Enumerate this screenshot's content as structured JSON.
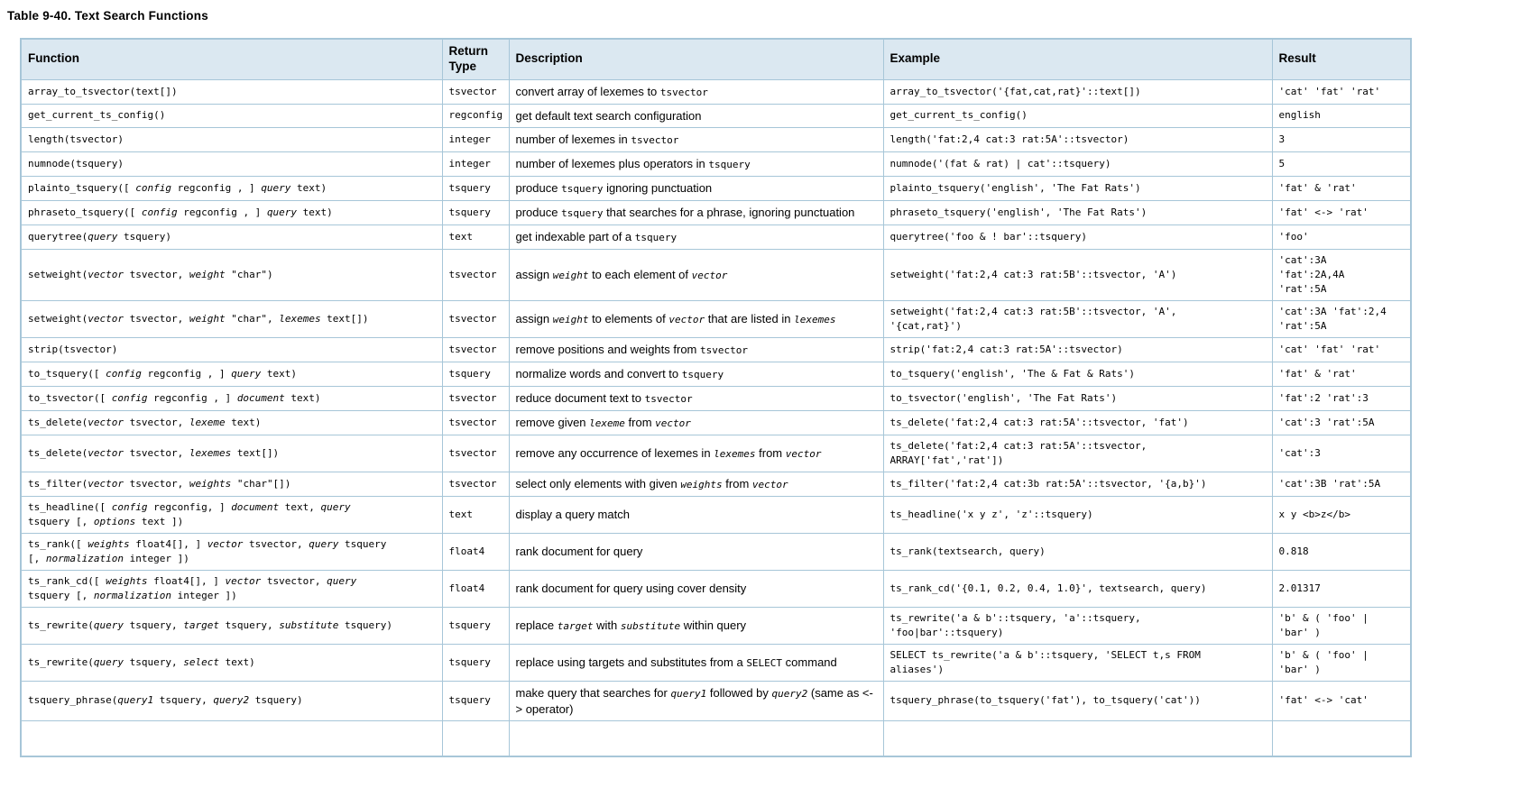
{
  "page_title": "Table 9-40. Text Search Functions",
  "colors": {
    "header_bg": "#dbe8f1",
    "border": "#a7c6d8",
    "text": "#000000"
  },
  "table": {
    "columns": [
      "Function",
      "Return Type",
      "Description",
      "Example",
      "Result"
    ],
    "rows": [
      {
        "func": [
          [
            "c",
            "array_to_tsvector(text[])"
          ]
        ],
        "ret": "tsvector",
        "desc": [
          [
            "t",
            "convert array of lexemes to "
          ],
          [
            "c",
            "tsvector"
          ]
        ],
        "ex": "array_to_tsvector('{fat,cat,rat}'::text[])",
        "res": "'cat' 'fat' 'rat'"
      },
      {
        "func": [
          [
            "c",
            "get_current_ts_config()"
          ]
        ],
        "ret": "regconfig",
        "desc": [
          [
            "t",
            "get default text search configuration"
          ]
        ],
        "ex": "get_current_ts_config()",
        "res": "english"
      },
      {
        "func": [
          [
            "c",
            "length(tsvector)"
          ]
        ],
        "ret": "integer",
        "desc": [
          [
            "t",
            "number of lexemes in "
          ],
          [
            "c",
            "tsvector"
          ]
        ],
        "ex": "length('fat:2,4 cat:3 rat:5A'::tsvector)",
        "res": "3"
      },
      {
        "func": [
          [
            "c",
            "numnode(tsquery)"
          ]
        ],
        "ret": "integer",
        "desc": [
          [
            "t",
            "number of lexemes plus operators in "
          ],
          [
            "c",
            "tsquery"
          ]
        ],
        "ex": "numnode('(fat & rat) | cat'::tsquery)",
        "res": "5"
      },
      {
        "func": [
          [
            "c",
            "plainto_tsquery([ "
          ],
          [
            "i",
            "config"
          ],
          [
            "c",
            " regconfig , ] "
          ],
          [
            "i",
            "query"
          ],
          [
            "c",
            " text)"
          ]
        ],
        "ret": "tsquery",
        "desc": [
          [
            "t",
            "produce "
          ],
          [
            "c",
            "tsquery"
          ],
          [
            "t",
            " ignoring punctuation"
          ]
        ],
        "ex": "plainto_tsquery('english', 'The Fat Rats')",
        "res": "'fat' & 'rat'"
      },
      {
        "func": [
          [
            "c",
            "phraseto_tsquery([ "
          ],
          [
            "i",
            "config"
          ],
          [
            "c",
            " regconfig , ] "
          ],
          [
            "i",
            "query"
          ],
          [
            "c",
            " text)"
          ]
        ],
        "ret": "tsquery",
        "desc": [
          [
            "t",
            "produce "
          ],
          [
            "c",
            "tsquery"
          ],
          [
            "t",
            " that searches for a phrase, ignoring punctuation"
          ]
        ],
        "ex": "phraseto_tsquery('english', 'The Fat Rats')",
        "res": "'fat' <-> 'rat'"
      },
      {
        "func": [
          [
            "c",
            "querytree("
          ],
          [
            "i",
            "query"
          ],
          [
            "c",
            " tsquery)"
          ]
        ],
        "ret": "text",
        "desc": [
          [
            "t",
            "get indexable part of a "
          ],
          [
            "c",
            "tsquery"
          ]
        ],
        "ex": "querytree('foo & ! bar'::tsquery)",
        "res": "'foo'"
      },
      {
        "func": [
          [
            "c",
            "setweight("
          ],
          [
            "i",
            "vector"
          ],
          [
            "c",
            " tsvector, "
          ],
          [
            "i",
            "weight"
          ],
          [
            "c",
            " \"char\")"
          ]
        ],
        "ret": "tsvector",
        "desc": [
          [
            "t",
            "assign "
          ],
          [
            "i",
            "weight"
          ],
          [
            "t",
            " to each element of "
          ],
          [
            "i",
            "vector"
          ]
        ],
        "ex": "setweight('fat:2,4 cat:3 rat:5B'::tsvector, 'A')",
        "res": "'cat':3A\n'fat':2A,4A\n'rat':5A"
      },
      {
        "func": [
          [
            "c",
            "setweight("
          ],
          [
            "i",
            "vector"
          ],
          [
            "c",
            " tsvector, "
          ],
          [
            "i",
            "weight"
          ],
          [
            "c",
            " \"char\", "
          ],
          [
            "i",
            "lexemes"
          ],
          [
            "c",
            " text[])"
          ]
        ],
        "ret": "tsvector",
        "desc": [
          [
            "t",
            "assign "
          ],
          [
            "i",
            "weight"
          ],
          [
            "t",
            " to elements of "
          ],
          [
            "i",
            "vector"
          ],
          [
            "t",
            " that are listed in "
          ],
          [
            "i",
            "lexemes"
          ]
        ],
        "ex": "setweight('fat:2,4 cat:3 rat:5B'::tsvector, 'A',\n'{cat,rat}')",
        "res": "'cat':3A 'fat':2,4\n'rat':5A"
      },
      {
        "func": [
          [
            "c",
            "strip(tsvector)"
          ]
        ],
        "ret": "tsvector",
        "desc": [
          [
            "t",
            "remove positions and weights from "
          ],
          [
            "c",
            "tsvector"
          ]
        ],
        "ex": "strip('fat:2,4 cat:3 rat:5A'::tsvector)",
        "res": "'cat' 'fat' 'rat'"
      },
      {
        "func": [
          [
            "c",
            "to_tsquery([ "
          ],
          [
            "i",
            "config"
          ],
          [
            "c",
            " regconfig , ] "
          ],
          [
            "i",
            "query"
          ],
          [
            "c",
            " text)"
          ]
        ],
        "ret": "tsquery",
        "desc": [
          [
            "t",
            "normalize words and convert to "
          ],
          [
            "c",
            "tsquery"
          ]
        ],
        "ex": "to_tsquery('english', 'The & Fat & Rats')",
        "res": "'fat' & 'rat'"
      },
      {
        "func": [
          [
            "c",
            "to_tsvector([ "
          ],
          [
            "i",
            "config"
          ],
          [
            "c",
            " regconfig , ] "
          ],
          [
            "i",
            "document"
          ],
          [
            "c",
            " text)"
          ]
        ],
        "ret": "tsvector",
        "desc": [
          [
            "t",
            "reduce document text to "
          ],
          [
            "c",
            "tsvector"
          ]
        ],
        "ex": "to_tsvector('english', 'The Fat Rats')",
        "res": "'fat':2 'rat':3"
      },
      {
        "func": [
          [
            "c",
            "ts_delete("
          ],
          [
            "i",
            "vector"
          ],
          [
            "c",
            " tsvector, "
          ],
          [
            "i",
            "lexeme"
          ],
          [
            "c",
            " text)"
          ]
        ],
        "ret": "tsvector",
        "desc": [
          [
            "t",
            "remove given "
          ],
          [
            "i",
            "lexeme"
          ],
          [
            "t",
            " from "
          ],
          [
            "i",
            "vector"
          ]
        ],
        "ex": "ts_delete('fat:2,4 cat:3 rat:5A'::tsvector, 'fat')",
        "res": "'cat':3 'rat':5A"
      },
      {
        "func": [
          [
            "c",
            "ts_delete("
          ],
          [
            "i",
            "vector"
          ],
          [
            "c",
            " tsvector, "
          ],
          [
            "i",
            "lexemes"
          ],
          [
            "c",
            " text[])"
          ]
        ],
        "ret": "tsvector",
        "desc": [
          [
            "t",
            "remove any occurrence of lexemes in "
          ],
          [
            "i",
            "lexemes"
          ],
          [
            "t",
            " from "
          ],
          [
            "i",
            "vector"
          ]
        ],
        "ex": "ts_delete('fat:2,4 cat:3 rat:5A'::tsvector,\nARRAY['fat','rat'])",
        "res": "'cat':3"
      },
      {
        "func": [
          [
            "c",
            "ts_filter("
          ],
          [
            "i",
            "vector"
          ],
          [
            "c",
            " tsvector, "
          ],
          [
            "i",
            "weights"
          ],
          [
            "c",
            " \"char\"[])"
          ]
        ],
        "ret": "tsvector",
        "desc": [
          [
            "t",
            "select only elements with given "
          ],
          [
            "i",
            "weights"
          ],
          [
            "t",
            " from "
          ],
          [
            "i",
            "vector"
          ]
        ],
        "ex": "ts_filter('fat:2,4 cat:3b rat:5A'::tsvector, '{a,b}')",
        "res": "'cat':3B 'rat':5A"
      },
      {
        "func": [
          [
            "c",
            "ts_headline([ "
          ],
          [
            "i",
            "config"
          ],
          [
            "c",
            " regconfig, ] "
          ],
          [
            "i",
            "document"
          ],
          [
            "c",
            " text, "
          ],
          [
            "i",
            "query"
          ],
          [
            "br",
            ""
          ],
          [
            "c",
            "tsquery [, "
          ],
          [
            "i",
            "options"
          ],
          [
            "c",
            " text ])"
          ]
        ],
        "ret": "text",
        "desc": [
          [
            "t",
            "display a query match"
          ]
        ],
        "ex": "ts_headline('x y z', 'z'::tsquery)",
        "res": "x y <b>z</b>"
      },
      {
        "func": [
          [
            "c",
            "ts_rank([ "
          ],
          [
            "i",
            "weights"
          ],
          [
            "c",
            " float4[], ] "
          ],
          [
            "i",
            "vector"
          ],
          [
            "c",
            " tsvector, "
          ],
          [
            "i",
            "query"
          ],
          [
            "c",
            " tsquery"
          ],
          [
            "br",
            ""
          ],
          [
            "c",
            "[, "
          ],
          [
            "i",
            "normalization"
          ],
          [
            "c",
            " integer ])"
          ]
        ],
        "ret": "float4",
        "desc": [
          [
            "t",
            "rank document for query"
          ]
        ],
        "ex": "ts_rank(textsearch, query)",
        "res": "0.818"
      },
      {
        "func": [
          [
            "c",
            "ts_rank_cd([ "
          ],
          [
            "i",
            "weights"
          ],
          [
            "c",
            " float4[], ] "
          ],
          [
            "i",
            "vector"
          ],
          [
            "c",
            " tsvector, "
          ],
          [
            "i",
            "query"
          ],
          [
            "br",
            ""
          ],
          [
            "c",
            "tsquery [, "
          ],
          [
            "i",
            "normalization"
          ],
          [
            "c",
            " integer ])"
          ]
        ],
        "ret": "float4",
        "desc": [
          [
            "t",
            "rank document for query using cover density"
          ]
        ],
        "ex": "ts_rank_cd('{0.1, 0.2, 0.4, 1.0}', textsearch, query)",
        "res": "2.01317"
      },
      {
        "func": [
          [
            "c",
            "ts_rewrite("
          ],
          [
            "i",
            "query"
          ],
          [
            "c",
            " tsquery, "
          ],
          [
            "i",
            "target"
          ],
          [
            "c",
            " tsquery, "
          ],
          [
            "i",
            "substitute"
          ],
          [
            "c",
            " tsquery)"
          ]
        ],
        "ret": "tsquery",
        "desc": [
          [
            "t",
            "replace "
          ],
          [
            "i",
            "target"
          ],
          [
            "t",
            " with "
          ],
          [
            "i",
            "substitute"
          ],
          [
            "t",
            " within query"
          ]
        ],
        "ex": "ts_rewrite('a & b'::tsquery, 'a'::tsquery,\n'foo|bar'::tsquery)",
        "res": "'b' & ( 'foo' |\n'bar' )"
      },
      {
        "func": [
          [
            "c",
            "ts_rewrite("
          ],
          [
            "i",
            "query"
          ],
          [
            "c",
            " tsquery, "
          ],
          [
            "i",
            "select"
          ],
          [
            "c",
            " text)"
          ]
        ],
        "ret": "tsquery",
        "desc": [
          [
            "t",
            "replace using targets and substitutes from a "
          ],
          [
            "c",
            "SELECT"
          ],
          [
            "t",
            " command"
          ]
        ],
        "ex": "SELECT ts_rewrite('a & b'::tsquery, 'SELECT t,s FROM\naliases')",
        "res": "'b' & ( 'foo' |\n'bar' )"
      },
      {
        "func": [
          [
            "c",
            "tsquery_phrase("
          ],
          [
            "i",
            "query1"
          ],
          [
            "c",
            " tsquery, "
          ],
          [
            "i",
            "query2"
          ],
          [
            "c",
            " tsquery)"
          ]
        ],
        "ret": "tsquery",
        "desc": [
          [
            "t",
            "make query that searches for "
          ],
          [
            "i",
            "query1"
          ],
          [
            "t",
            " followed by "
          ],
          [
            "i",
            "query2"
          ],
          [
            "t",
            " (same as <-> operator)"
          ]
        ],
        "ex": "tsquery_phrase(to_tsquery('fat'), to_tsquery('cat'))",
        "res": "'fat' <-> 'cat'"
      }
    ]
  }
}
